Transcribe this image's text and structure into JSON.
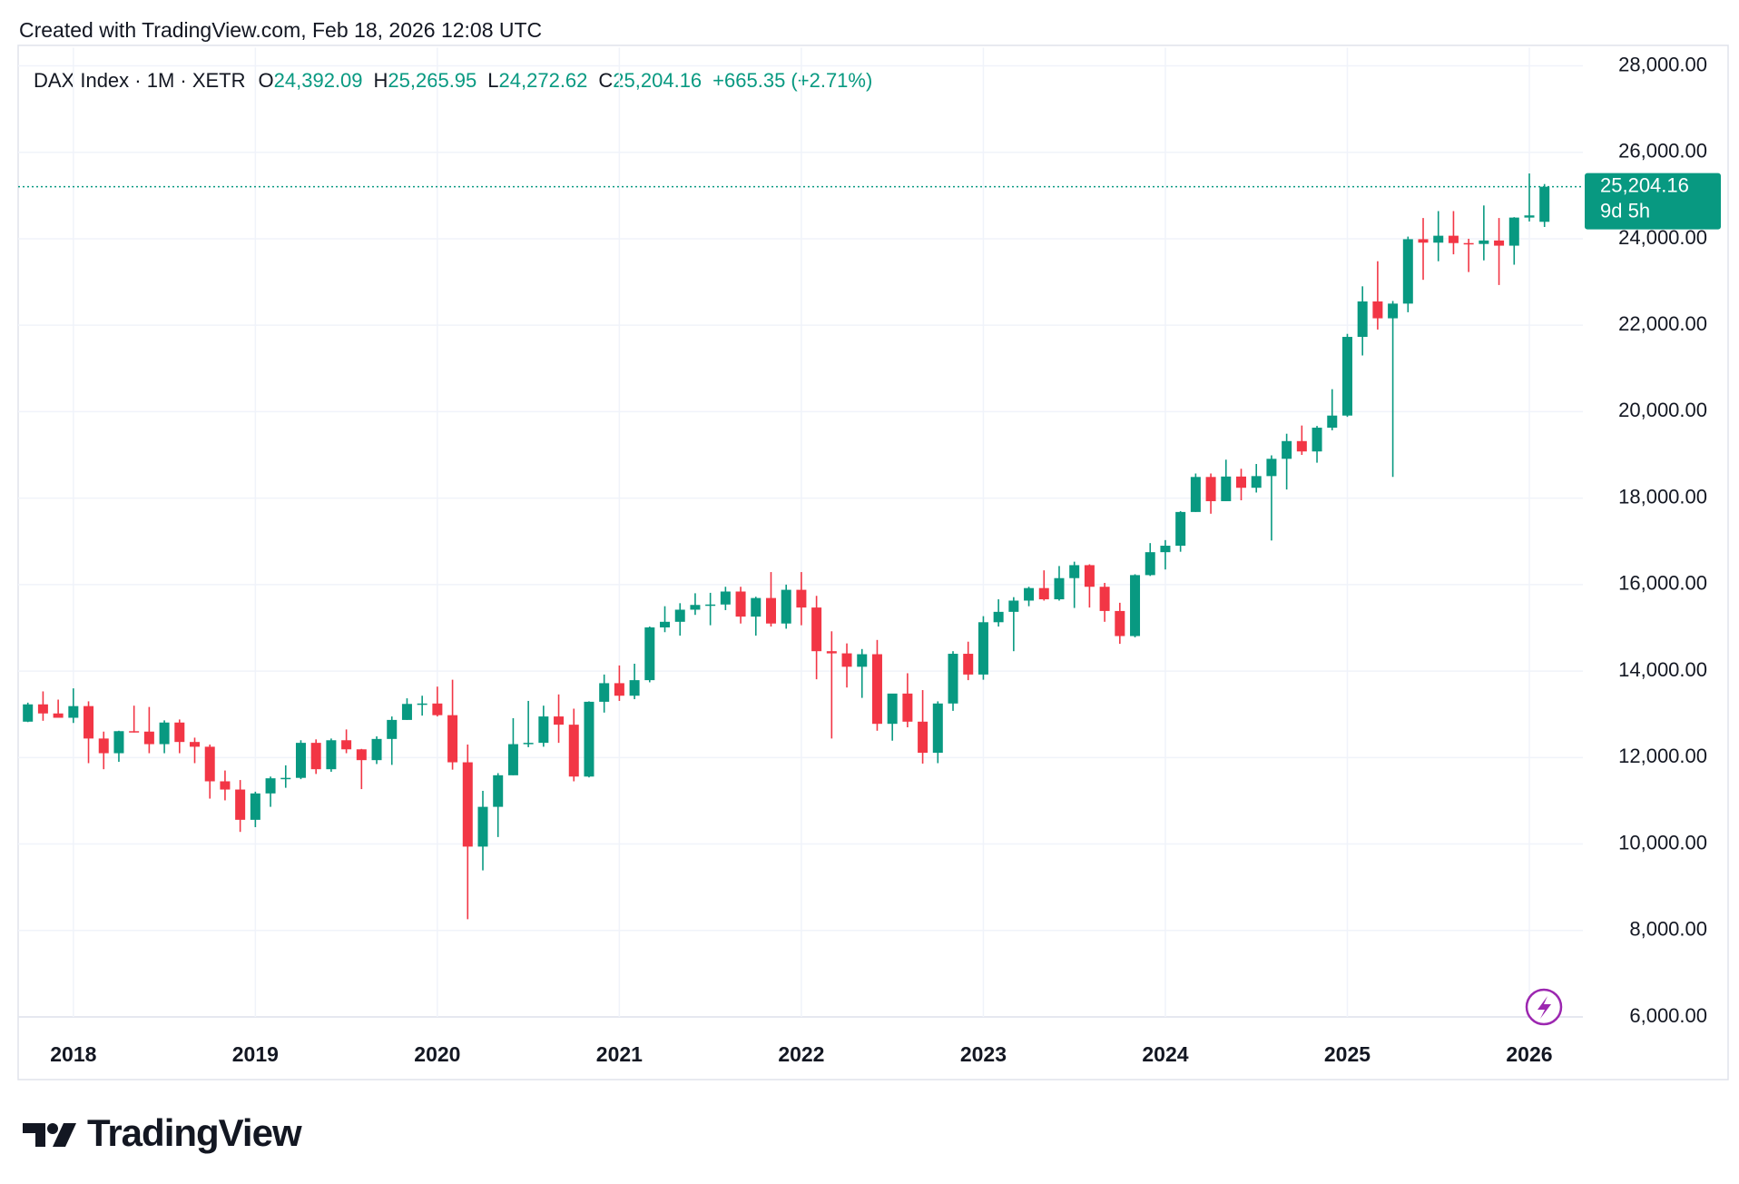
{
  "chart_data": {
    "type": "candlestick",
    "header": "Created with TradingView.com, Feb 18, 2026 12:08 UTC",
    "brand": "TradingView",
    "legend": {
      "symbol": "DAX Index · 1M · XETR",
      "fields": [
        {
          "label": "O",
          "text": "24,392.09"
        },
        {
          "label": "H",
          "text": "25,265.95"
        },
        {
          "label": "L",
          "text": "24,272.62"
        },
        {
          "label": "C",
          "text": "25,204.16"
        }
      ],
      "change": "+665.35 (+2.71%)"
    },
    "last_price_label": "25,204.16",
    "countdown": "9d 5h",
    "up_color": "#089981",
    "down_color": "#f23645",
    "grid": true,
    "categories": [
      null,
      null,
      null,
      "2018",
      null,
      null,
      null,
      null,
      null,
      null,
      null,
      null,
      null,
      null,
      null,
      "2019",
      null,
      null,
      null,
      null,
      null,
      null,
      null,
      null,
      null,
      null,
      null,
      "2020",
      null,
      null,
      null,
      null,
      null,
      null,
      null,
      null,
      null,
      null,
      null,
      "2021",
      null,
      null,
      null,
      null,
      null,
      null,
      null,
      null,
      null,
      null,
      null,
      "2022",
      null,
      null,
      null,
      null,
      null,
      null,
      null,
      null,
      null,
      null,
      null,
      "2023",
      null,
      null,
      null,
      null,
      null,
      null,
      null,
      null,
      null,
      null,
      null,
      "2024",
      null,
      null,
      null,
      null,
      null,
      null,
      null,
      null,
      null,
      null,
      null,
      "2025",
      null,
      null,
      null,
      null,
      null,
      null,
      null,
      null,
      null,
      null,
      null,
      "2026",
      null
    ],
    "open": [
      12830,
      13230,
      13020,
      12920,
      13190,
      12440,
      12100,
      12610,
      12600,
      12310,
      12810,
      12360,
      12250,
      11450,
      11260,
      10560,
      11170,
      11520,
      11530,
      12340,
      11730,
      12400,
      12190,
      11940,
      12430,
      12870,
      13240,
      13250,
      12980,
      11890,
      9940,
      10860,
      11590,
      12310,
      12340,
      12950,
      12760,
      11560,
      13290,
      13720,
      13430,
      13790,
      15010,
      15140,
      15420,
      15530,
      15540,
      15840,
      15260,
      15690,
      15100,
      15880,
      15470,
      14460,
      14410,
      14100,
      14390,
      12780,
      13480,
      12830,
      12110,
      13250,
      14400,
      13920,
      15130,
      15370,
      15630,
      15920,
      15660,
      16150,
      16450,
      15950,
      15390,
      14810,
      16220,
      16750,
      16900,
      17680,
      18490,
      17930,
      18500,
      18240,
      18510,
      18910,
      19320,
      19080,
      19630,
      19910,
      21730,
      22550,
      22160,
      22500,
      23990,
      23910,
      24070,
      23900,
      23880,
      23960,
      23840,
      24490,
      24392.09
    ],
    "high": [
      13270,
      13530,
      13340,
      13600,
      13300,
      12600,
      12620,
      13200,
      13170,
      12860,
      12880,
      12460,
      12300,
      11700,
      11480,
      11210,
      11560,
      11820,
      12400,
      12420,
      12440,
      12650,
      12200,
      12490,
      12950,
      13370,
      13430,
      13640,
      13800,
      12300,
      11230,
      11640,
      12910,
      13310,
      13200,
      13460,
      13130,
      13300,
      13920,
      14130,
      14170,
      15030,
      15500,
      15570,
      15800,
      15810,
      15950,
      15950,
      15720,
      16290,
      16000,
      16290,
      15740,
      14920,
      14640,
      14510,
      14720,
      13410,
      13950,
      13560,
      13300,
      14460,
      14680,
      15270,
      15660,
      15710,
      15950,
      16330,
      16430,
      16530,
      16470,
      16040,
      15580,
      16240,
      16960,
      17030,
      17700,
      18570,
      18570,
      18890,
      18680,
      18790,
      18990,
      19490,
      19680,
      19670,
      20520,
      21800,
      22900,
      23480,
      22560,
      24050,
      24480,
      24640,
      24640,
      24000,
      24770,
      24480,
      24500,
      25510,
      25265.95
    ],
    "low": [
      12820,
      12850,
      12920,
      12800,
      11870,
      11730,
      11900,
      12580,
      12100,
      12100,
      12100,
      11870,
      11050,
      11010,
      10280,
      10390,
      10860,
      11300,
      11500,
      11620,
      11670,
      12100,
      11270,
      11850,
      11830,
      12870,
      12970,
      12950,
      11720,
      8260,
      9390,
      10160,
      11590,
      12240,
      12250,
      12340,
      11450,
      11540,
      13040,
      13310,
      13350,
      13740,
      14900,
      14820,
      15300,
      15060,
      15410,
      15100,
      14820,
      15030,
      14980,
      15060,
      13810,
      12440,
      13620,
      13380,
      12620,
      12390,
      12700,
      11860,
      11870,
      13080,
      13790,
      13800,
      15030,
      14460,
      15500,
      15630,
      15630,
      15460,
      15470,
      15140,
      14630,
      14780,
      16200,
      16350,
      16760,
      17680,
      17640,
      17930,
      17950,
      18130,
      17020,
      18200,
      19000,
      18820,
      19570,
      19880,
      21300,
      21900,
      18490,
      22300,
      23050,
      23480,
      23640,
      23230,
      23500,
      22930,
      23400,
      24400,
      24272.62
    ],
    "close": [
      13230,
      13020,
      12920,
      13190,
      12440,
      12100,
      12610,
      12600,
      12310,
      12810,
      12360,
      12250,
      11450,
      11260,
      10560,
      11170,
      11520,
      11530,
      12340,
      11730,
      12400,
      12190,
      11940,
      12430,
      12870,
      13240,
      13250,
      12980,
      11890,
      9940,
      10860,
      11590,
      12310,
      12340,
      12950,
      12760,
      11560,
      13290,
      13720,
      13430,
      13790,
      15010,
      15140,
      15420,
      15530,
      15540,
      15840,
      15260,
      15690,
      15100,
      15880,
      15470,
      14460,
      14410,
      14100,
      14390,
      12780,
      13480,
      12830,
      12110,
      13250,
      14400,
      13920,
      15130,
      15370,
      15630,
      15920,
      15660,
      16150,
      16450,
      15950,
      15390,
      14810,
      16220,
      16750,
      16900,
      17680,
      18490,
      17930,
      18500,
      18240,
      18510,
      18910,
      19320,
      19080,
      19630,
      19910,
      21730,
      22550,
      22160,
      22500,
      23990,
      23910,
      24070,
      23900,
      23880,
      23960,
      23840,
      24490,
      24540,
      25204.16
    ],
    "ylim": [
      6000,
      28000
    ],
    "yticks": [
      {
        "value": 6000,
        "label": "6,000.00"
      },
      {
        "value": 8000,
        "label": "8,000.00"
      },
      {
        "value": 10000,
        "label": "10,000.00"
      },
      {
        "value": 12000,
        "label": "12,000.00"
      },
      {
        "value": 14000,
        "label": "14,000.00"
      },
      {
        "value": 16000,
        "label": "16,000.00"
      },
      {
        "value": 18000,
        "label": "18,000.00"
      },
      {
        "value": 20000,
        "label": "20,000.00"
      },
      {
        "value": 22000,
        "label": "22,000.00"
      },
      {
        "value": 24000,
        "label": "24,000.00"
      },
      {
        "value": 26000,
        "label": "26,000.00"
      },
      {
        "value": 28000,
        "label": "28,000.00"
      }
    ]
  }
}
